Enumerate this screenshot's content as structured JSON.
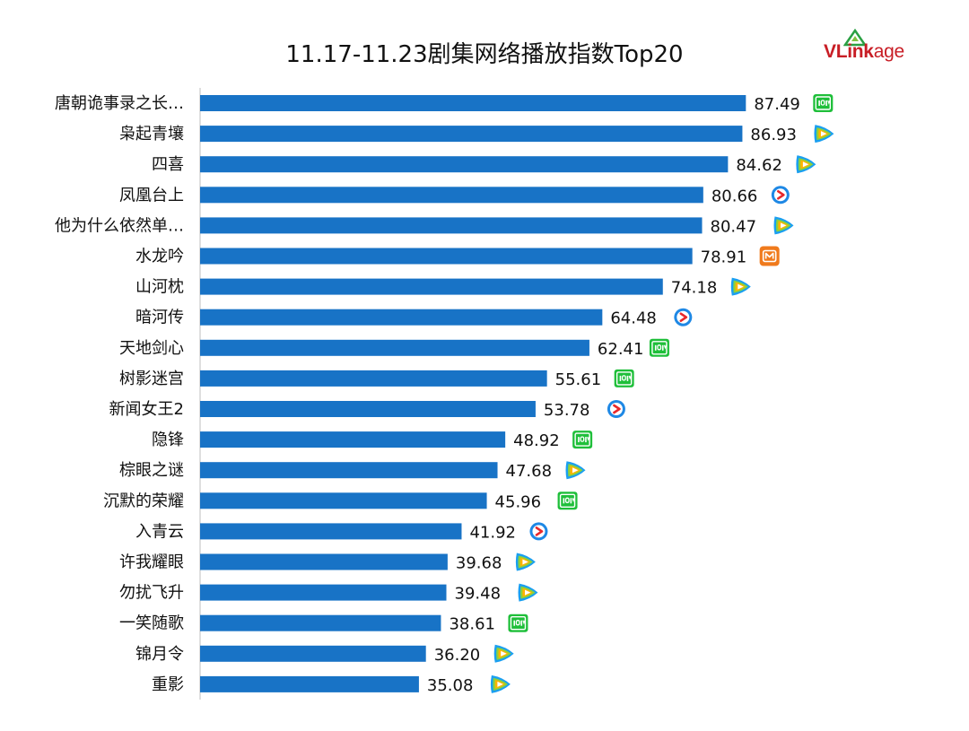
{
  "brand": {
    "logo_text_v": "V",
    "logo_text_link": "Link",
    "logo_text_age": "age"
  },
  "colors": {
    "bar": "#1873c6",
    "axis": "#bfbfbf",
    "iqiyi": "#1fbf3a",
    "youku": "#1e88e5",
    "mango": "#f07a1c"
  },
  "chart_data": {
    "type": "bar",
    "orientation": "horizontal",
    "title": "11.17-11.23剧集网络播放指数Top20",
    "xlabel": "",
    "ylabel": "",
    "xlim": [
      0,
      100
    ],
    "grid": false,
    "categories": [
      "唐朝诡事录之长…",
      "枭起青壤",
      "四喜",
      "凤凰台上",
      "他为什么依然单…",
      "水龙吟",
      "山河枕",
      "暗河传",
      "天地剑心",
      "树影迷宫",
      "新闻女王2",
      "隐锋",
      "棕眼之谜",
      "沉默的荣耀",
      "入青云",
      "许我耀眼",
      "勿扰飞升",
      "一笑随歌",
      "锦月令",
      "重影"
    ],
    "values": [
      87.49,
      86.93,
      84.62,
      80.66,
      80.47,
      78.91,
      74.18,
      64.48,
      62.41,
      55.61,
      53.78,
      48.92,
      47.68,
      45.96,
      41.92,
      39.68,
      39.48,
      38.61,
      36.2,
      35.08
    ],
    "labels": [
      "87.49",
      "86.93",
      "84.62",
      "80.66",
      "80.47",
      "78.91",
      "74.18",
      "64.48",
      "62.41",
      "55.61",
      "53.78",
      "48.92",
      "47.68",
      "45.96",
      "41.92",
      "39.68",
      "39.48",
      "38.61",
      "36.20",
      "35.08"
    ],
    "platform_icons": [
      "iqiyi-icon",
      "tencent-video-icon",
      "tencent-video-icon",
      "youku-icon",
      "tencent-video-icon",
      "mango-tv-icon",
      "tencent-video-icon",
      "youku-icon",
      "iqiyi-icon",
      "iqiyi-icon",
      "youku-icon",
      "iqiyi-icon",
      "tencent-video-icon",
      "iqiyi-icon",
      "youku-icon",
      "tencent-video-icon",
      "tencent-video-icon",
      "iqiyi-icon",
      "tencent-video-icon",
      "tencent-video-icon"
    ]
  }
}
